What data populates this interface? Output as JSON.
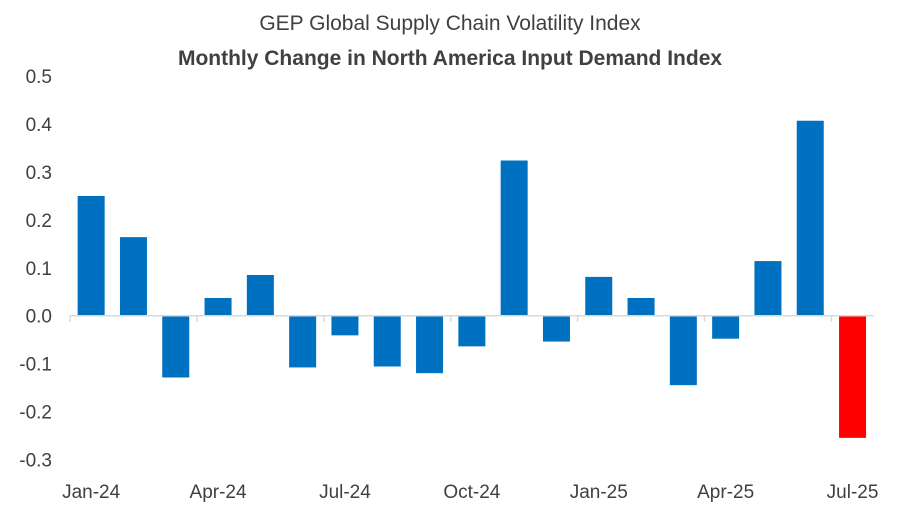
{
  "chart_data": {
    "type": "bar",
    "title": "GEP Global Supply Chain Volatility Index",
    "subtitle": "Monthly Change in North America Input Demand Index",
    "xlabel": "",
    "ylabel": "",
    "ylim": [
      -0.3,
      0.5
    ],
    "yticks": [
      "0.5",
      "0.4",
      "0.3",
      "0.2",
      "0.1",
      "0.0",
      "-0.1",
      "-0.2",
      "-0.3"
    ],
    "ytick_values": [
      0.5,
      0.4,
      0.3,
      0.2,
      0.1,
      0.0,
      -0.1,
      -0.2,
      -0.3
    ],
    "categories": [
      "Jan-24",
      "Feb-24",
      "Mar-24",
      "Apr-24",
      "May-24",
      "Jun-24",
      "Jul-24",
      "Aug-24",
      "Sep-24",
      "Oct-24",
      "Nov-24",
      "Dec-24",
      "Jan-25",
      "Feb-25",
      "Mar-25",
      "Apr-25",
      "May-25",
      "Jun-25",
      "Jul-25"
    ],
    "xtick_labels": [
      "Jan-24",
      "Apr-24",
      "Jul-24",
      "Oct-24",
      "Jan-25",
      "Apr-25",
      "Jul-25"
    ],
    "values": [
      0.25,
      0.164,
      -0.129,
      0.037,
      0.085,
      -0.108,
      -0.041,
      -0.106,
      -0.12,
      -0.064,
      0.324,
      -0.054,
      0.081,
      0.037,
      -0.145,
      -0.048,
      0.114,
      0.407,
      -0.255
    ],
    "grid": false,
    "legend": "none",
    "colors": {
      "bar": "#0070C0",
      "highlight": "#FF0000",
      "highlight_category": "Jul-25",
      "axis": "#D9D9D9"
    }
  }
}
